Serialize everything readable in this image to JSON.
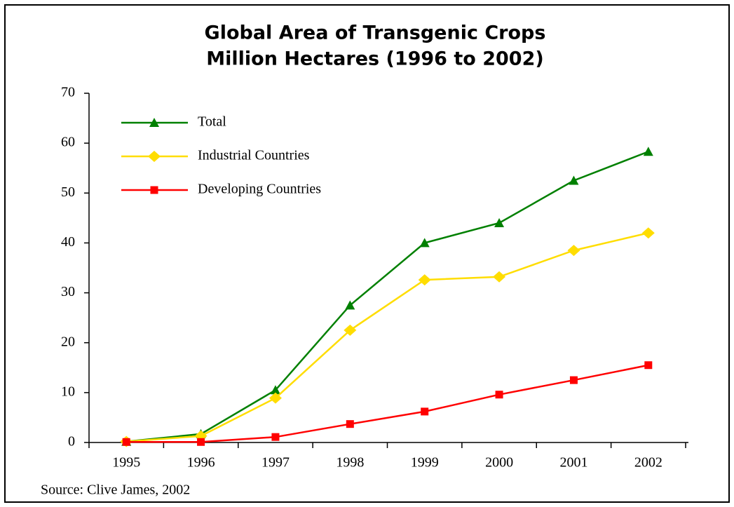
{
  "chart_data": {
    "type": "line",
    "title": "Global Area of Transgenic Crops",
    "subtitle": "Million Hectares (1996 to 2002)",
    "source": "Source: Clive James, 2002",
    "categories": [
      "1995",
      "1996",
      "1997",
      "1998",
      "1999",
      "2000",
      "2001",
      "2002"
    ],
    "series": [
      {
        "name": "Total",
        "color": "#008000",
        "marker": "triangle",
        "values": [
          0.2,
          1.7,
          10.5,
          27.5,
          40,
          44,
          52.5,
          58.3
        ]
      },
      {
        "name": "Industrial Countries",
        "color": "#ffdd00",
        "marker": "diamond",
        "values": [
          0.2,
          1.3,
          8.9,
          22.5,
          32.6,
          33.2,
          38.5,
          42
        ]
      },
      {
        "name": "Developing Countries",
        "color": "#ff0000",
        "marker": "square",
        "values": [
          0.1,
          0.1,
          1.1,
          3.7,
          6.2,
          9.6,
          12.5,
          15.5
        ]
      }
    ],
    "ylim": [
      0,
      70
    ],
    "yticks": [
      0,
      10,
      20,
      30,
      40,
      50,
      60,
      70
    ],
    "grid": false,
    "legend": "upper left"
  }
}
